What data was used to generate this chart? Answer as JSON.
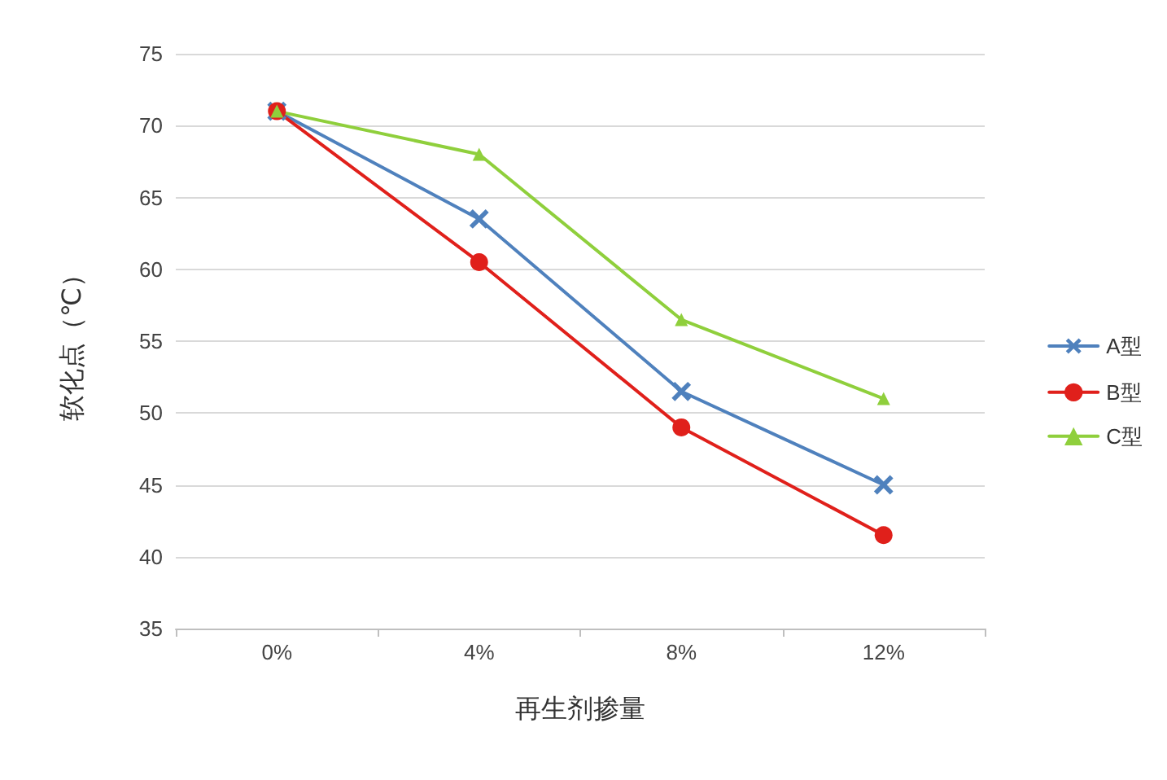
{
  "chart_data": {
    "type": "line",
    "xlabel": "再生剂掺量",
    "ylabel": "软化点（℃）",
    "categories": [
      "0%",
      "4%",
      "8%",
      "12%"
    ],
    "series": [
      {
        "name": "A型",
        "color": "#4f81bd",
        "marker": "cross",
        "values": [
          71,
          63.5,
          51.5,
          45
        ]
      },
      {
        "name": "B型",
        "color": "#e0201b",
        "marker": "circle",
        "values": [
          71,
          60.5,
          49,
          41.5
        ]
      },
      {
        "name": "C型",
        "color": "#8fcf3c",
        "marker": "triangle",
        "values": [
          71,
          68,
          56.5,
          51
        ]
      }
    ],
    "ylim": [
      35,
      75
    ],
    "yticks": [
      35,
      40,
      45,
      50,
      55,
      60,
      65,
      70,
      75
    ],
    "grid": "y",
    "legend": "right",
    "line_style": "solid"
  }
}
